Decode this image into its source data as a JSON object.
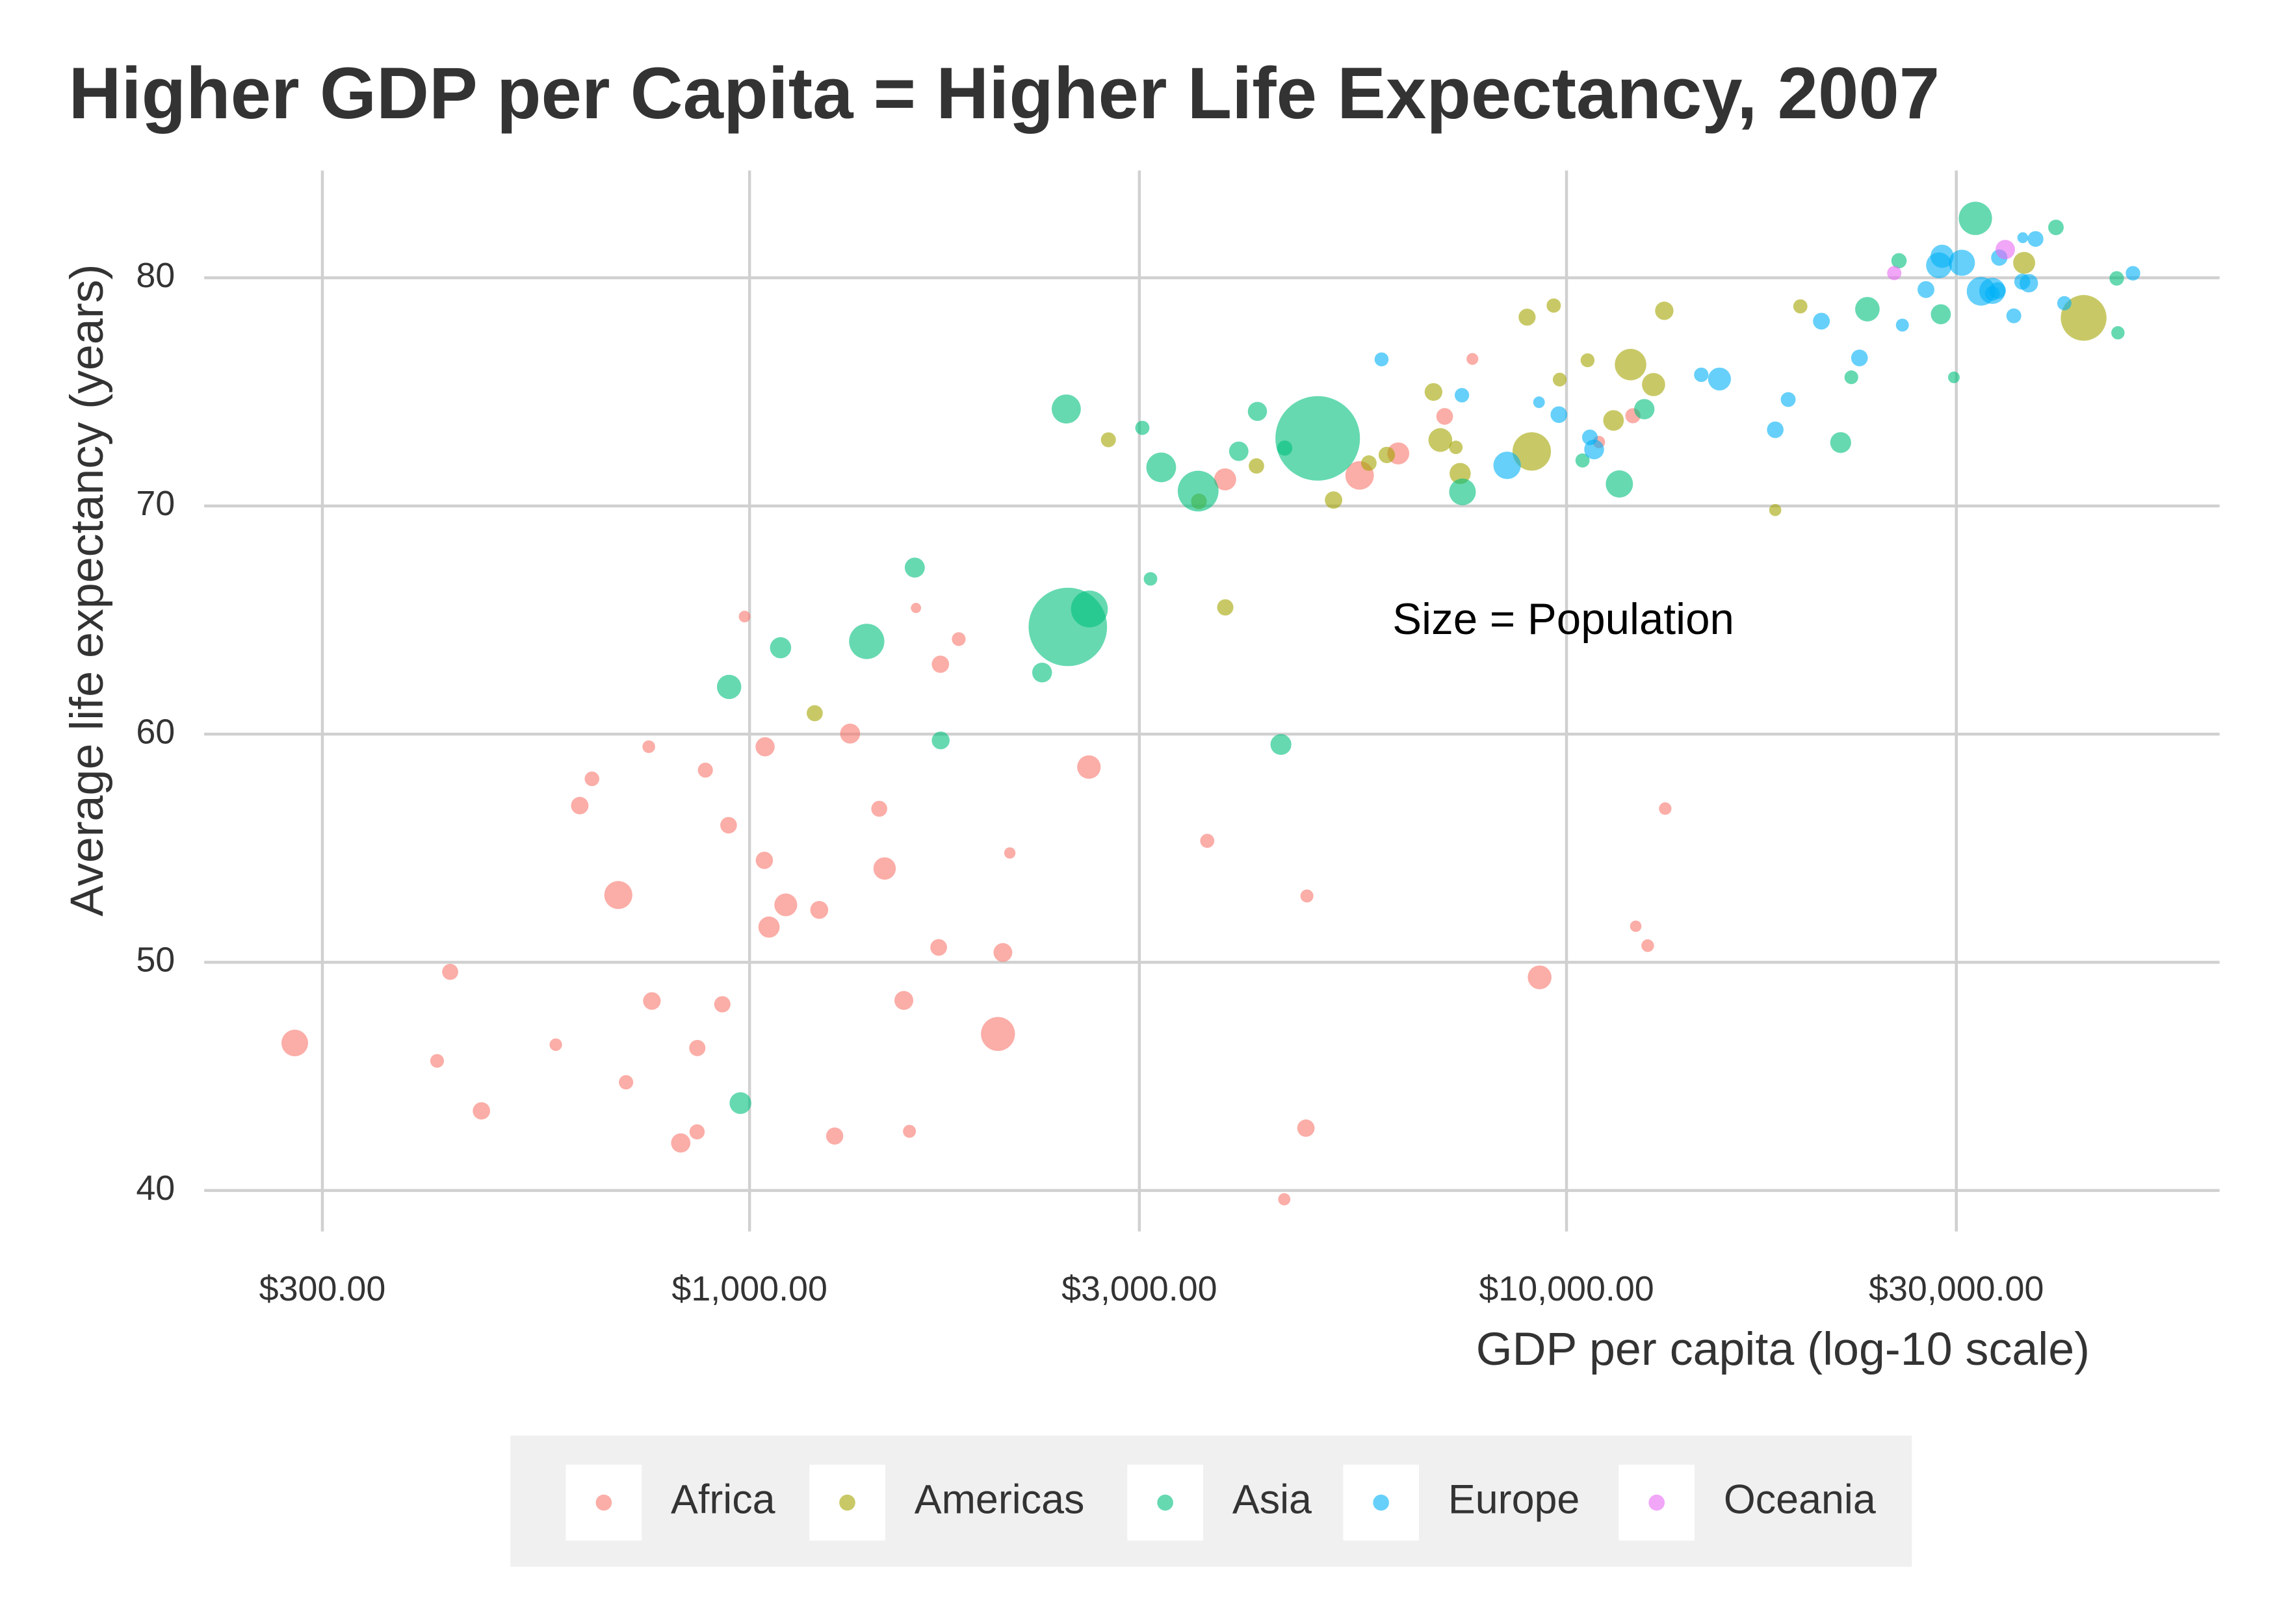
{
  "chart_data": {
    "type": "scatter",
    "title": "Higher GDP per Capita = Higher Life Expectancy, 2007",
    "x_label": "GDP per capita (log-10 scale)",
    "y_label": "Average life expectancy (years)",
    "annotation": "Size = Population",
    "x_log": true,
    "grid": true,
    "legend_position": "bottom",
    "opacity": 0.6,
    "xlim": [
      215,
      63000
    ],
    "ylim": [
      38.2,
      84.7
    ],
    "xticks": [
      {
        "value": 300,
        "label": "$300.00"
      },
      {
        "value": 1000,
        "label": "$1,000.00"
      },
      {
        "value": 3000,
        "label": "$3,000.00"
      },
      {
        "value": 10000,
        "label": "$10,000.00"
      },
      {
        "value": 30000,
        "label": "$30,000.00"
      }
    ],
    "yticks": [
      40,
      50,
      60,
      70,
      80
    ],
    "series": [
      {
        "name": "Africa",
        "color": "#F8766D",
        "x": [
          6223.367,
          4797.231,
          1441.285,
          12569.85,
          1217.033,
          430.0707,
          2042.095,
          706.0165,
          1704.064,
          986.1479,
          277.5519,
          3632.558,
          1544.75,
          2082.482,
          5581.181,
          12154.09,
          641.3695,
          690.8056,
          13206.48,
          752.7497,
          1327.609,
          942.6542,
          579.2317,
          1463.249,
          1569.331,
          414.5073,
          12057.5,
          1044.77,
          759.3499,
          1042.582,
          1803.151,
          10956.99,
          3820.175,
          823.6856,
          4811.06,
          619.6769,
          2013.977,
          7670.123,
          863.0885,
          1598.435,
          1712.473,
          862.5408,
          926.1411,
          9269.658,
          2602.395,
          4513.481,
          1107.482,
          882.9699,
          7092.923,
          1056.38,
          1271.212,
          469.7093
        ],
        "values": [
          72.301,
          42.731,
          56.728,
          50.728,
          52.295,
          49.58,
          50.43,
          44.741,
          50.651,
          65.152,
          46.462,
          55.322,
          48.328,
          54.791,
          71.338,
          51.579,
          58.04,
          52.947,
          56.735,
          59.448,
          60.022,
          56.007,
          46.388,
          54.11,
          42.592,
          45.678,
          73.952,
          59.443,
          48.303,
          54.467,
          64.164,
          72.801,
          71.164,
          42.082,
          52.906,
          56.867,
          46.859,
          76.442,
          46.242,
          65.528,
          63.062,
          42.568,
          48.159,
          49.339,
          58.556,
          39.613,
          52.517,
          58.42,
          73.923,
          51.542,
          42.384,
          43.487
        ],
        "sizes": [
          33333216,
          12420476,
          8078314,
          1639131,
          14326203,
          8390505,
          17696293,
          4369038,
          10238807,
          710960,
          64606759,
          3800610,
          18013409,
          496374,
          80264543,
          551201,
          4906585,
          76511887,
          1454867,
          1688359,
          22873338,
          9947814,
          1472041,
          35610177,
          2012649,
          3193942,
          6036914,
          19167654,
          13327079,
          12031795,
          3270065,
          1250882,
          33757175,
          19951656,
          2055080,
          12894865,
          135031164,
          798094,
          8860588,
          199579,
          12267493,
          6144562,
          9118773,
          43997828,
          42292929,
          1133066,
          38139640,
          5701579,
          10276158,
          29170398,
          11746035,
          12311143
        ]
      },
      {
        "name": "Americas",
        "color": "#A3A500",
        "x": [
          12779.38,
          3822.137,
          9065.801,
          36319.24,
          13171.64,
          7006.58,
          9645.061,
          8948.103,
          6025.375,
          6873.262,
          5728.354,
          5186.05,
          1201.637,
          3548.331,
          7320.88,
          11977.57,
          2749.321,
          9809.186,
          4172.838,
          7408.906,
          19328.71,
          18008.51,
          42951.65,
          10611.46,
          11415.81
        ],
        "values": [
          75.32,
          65.554,
          72.39,
          80.653,
          78.553,
          72.889,
          78.782,
          78.273,
          72.235,
          74.994,
          71.878,
          70.259,
          60.916,
          70.198,
          72.567,
          76.195,
          72.899,
          75.537,
          71.752,
          71.421,
          78.746,
          69.819,
          78.242,
          76.384,
          73.747
        ],
        "sizes": [
          40301927,
          9119152,
          190010647,
          33390141,
          16284741,
          44227550,
          4133884,
          11416987,
          9319622,
          13755680,
          6939688,
          12572928,
          8502814,
          7483763,
          2780132,
          108700891,
          5675356,
          3242173,
          6667147,
          28674757,
          3942491,
          1056608,
          301139947,
          3447496,
          26084662
        ]
      },
      {
        "name": "Asia",
        "color": "#00BF7D",
        "x": [
          974.5803,
          29796.05,
          1391.254,
          1713.779,
          4959.115,
          39724.98,
          2452.21,
          3540.652,
          11605.71,
          4471.062,
          25523.28,
          31656.07,
          4519.461,
          1593.065,
          23348.14,
          47306.99,
          10461.06,
          12451.66,
          3095.772,
          944,
          1091.36,
          22316.19,
          2605.948,
          3190.481,
          21654.83,
          47143.18,
          3970.095,
          4184.548,
          28718.28,
          7458.396,
          2441.577,
          3025.35,
          2280.77
        ],
        "values": [
          43.828,
          75.635,
          64.062,
          59.723,
          72.961,
          82.208,
          64.698,
          70.65,
          70.964,
          59.545,
          80.745,
          82.603,
          72.535,
          67.297,
          78.623,
          77.588,
          71.993,
          74.241,
          66.803,
          62.069,
          63.785,
          75.64,
          65.483,
          71.688,
          72.777,
          79.972,
          72.396,
          74.143,
          78.4,
          70.616,
          74.249,
          73.422,
          62.698
        ],
        "sizes": [
          31889923,
          708573,
          150448339,
          14131858,
          1318683096,
          6980412,
          1110396331,
          223547000,
          69453570,
          27499638,
          6426679,
          127467972,
          6053193,
          23301725,
          49044790,
          2505559,
          3921278,
          24821286,
          2874127,
          47761980,
          28901790,
          3204897,
          169270617,
          91077287,
          27601038,
          4553009,
          20378239,
          19314747,
          23174294,
          65068149,
          85262356,
          4018332,
          22211743
        ]
      },
      {
        "name": "Europe",
        "color": "#00B0F6",
        "x": [
          5937.03,
          36126.49,
          33692.61,
          7446.299,
          10680.79,
          14619.22,
          22833.31,
          35278.42,
          33207.08,
          30470.02,
          32170.37,
          27538.41,
          18008.94,
          36180.79,
          40676,
          28569.72,
          9253.896,
          36797.93,
          49357.19,
          15389.92,
          20509.65,
          10808.48,
          9786.535,
          18678.31,
          25768.26,
          28821.06,
          33859.75,
          37506.42,
          8458.276,
          33203.26
        ],
        "values": [
          76.423,
          79.829,
          79.441,
          74.852,
          73.005,
          75.748,
          76.486,
          78.332,
          79.313,
          80.657,
          79.406,
          79.483,
          73.338,
          81.757,
          78.885,
          80.546,
          74.543,
          79.762,
          80.196,
          75.563,
          78.098,
          72.476,
          74.002,
          74.663,
          77.926,
          80.941,
          80.884,
          81.701,
          71.777,
          79.425
        ],
        "sizes": [
          3600523,
          8199783,
          10392226,
          4552198,
          7322858,
          4493312,
          10228744,
          5468120,
          5238460,
          61083916,
          82400996,
          10706290,
          9956108,
          301931,
          4109086,
          58147733,
          684736,
          16570613,
          4627926,
          38518241,
          10642836,
          22276056,
          10150265,
          5447502,
          2009245,
          40448191,
          9031088,
          7554661,
          71158647,
          60776238
        ]
      },
      {
        "name": "Oceania",
        "color": "#E76BF3",
        "x": [
          34435.37,
          25185.01
        ],
        "values": [
          81.235,
          80.204
        ],
        "sizes": [
          20434176,
          4115771
        ]
      }
    ]
  }
}
